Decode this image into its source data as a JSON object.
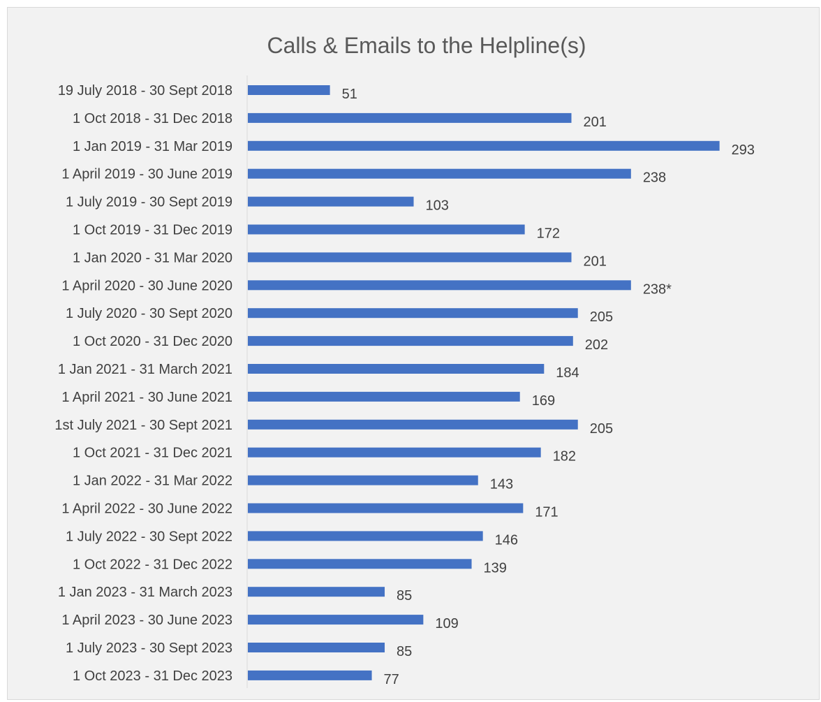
{
  "chart_data": {
    "type": "bar",
    "orientation": "horizontal",
    "title": "Calls & Emails to the Helpline(s)",
    "xlabel": "",
    "ylabel": "",
    "xlim": [
      0,
      300
    ],
    "grid": false,
    "legend": "none",
    "bar_color": "#4472c4",
    "categories": [
      "19 July 2018 - 30 Sept 2018",
      "1 Oct 2018 - 31 Dec 2018",
      "1 Jan 2019 - 31 Mar 2019",
      "1 April 2019 - 30 June 2019",
      "1 July 2019 - 30 Sept 2019",
      "1 Oct 2019 - 31 Dec 2019",
      "1 Jan 2020 - 31 Mar 2020",
      "1 April 2020 - 30 June 2020",
      "1 July 2020 - 30 Sept 2020",
      "1 Oct 2020 - 31 Dec 2020",
      "1 Jan 2021 - 31 March 2021",
      "1 April 2021 - 30 June 2021",
      "1st July 2021 - 30 Sept 2021",
      "1 Oct 2021 - 31 Dec 2021",
      "1 Jan 2022 - 31 Mar 2022",
      "1 April 2022 - 30 June 2022",
      "1 July 2022 - 30 Sept 2022",
      "1 Oct 2022 - 31 Dec 2022",
      "1 Jan 2023 - 31 March 2023",
      "1 April 2023 - 30 June 2023",
      "1 July 2023 - 30 Sept 2023",
      "1 Oct 2023 - 31 Dec 2023"
    ],
    "values": [
      51,
      201,
      293,
      238,
      103,
      172,
      201,
      238,
      205,
      202,
      184,
      169,
      205,
      182,
      143,
      171,
      146,
      139,
      85,
      109,
      85,
      77
    ],
    "data_labels": [
      "51",
      "201",
      "293",
      "238",
      "103",
      "172",
      "201",
      "238*",
      "205",
      "202",
      "184",
      "169",
      "205",
      "182",
      "143",
      "171",
      "146",
      "139",
      "85",
      "109",
      "85",
      "77"
    ]
  }
}
